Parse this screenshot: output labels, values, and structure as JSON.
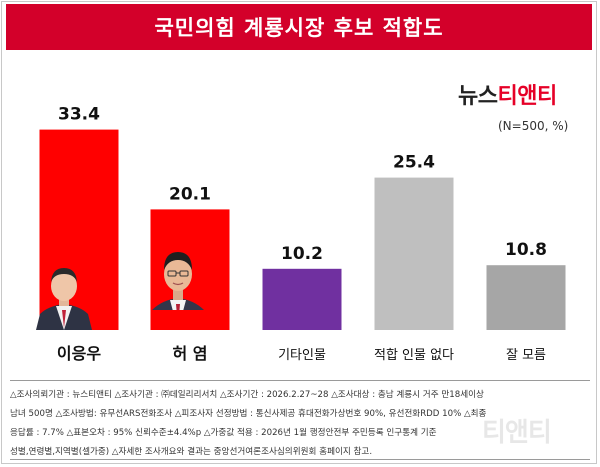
{
  "header": {
    "title": "국민의힘 계룡시장 후보 적합도"
  },
  "logo": {
    "part1": "뉴스",
    "part2": "티앤티"
  },
  "unit_label": "(N=500, %)",
  "colors": {
    "title_bg": "#d3002a",
    "red": "#ff0000",
    "purple": "#7030a0",
    "gray": "#bfbfbf",
    "dark_gray": "#a6a6a6"
  },
  "notes": {
    "line1": "△조사의뢰기관 : 뉴스티앤티 △조사기관 : ㈜데일리리서치 △조사기간 : 2026.2.27~28 △조사대상 : 충남 계룡시 거주 만18세이상",
    "line2": "남녀 500명 △조사방법: 유무선ARS전화조사 △피조사자 선정방법 : 통신사제공 휴대전화가상번호 90%, 유선전화RDD 10% △최종",
    "line3": "응답률 : 7.7% △표본오차 : 95% 신뢰수준±4.4%p △가중값 적용 : 2026년 1월 행정안전부 주민등록 인구통계 기준",
    "line4": "성별,연령별,지역별(셀가중) △자세한 조사개요와 결과는 중앙선거여론조사심의위원회 홈페이지 참고."
  },
  "chart_data": {
    "type": "bar",
    "categories": [
      "이응우",
      "허 염",
      "기타인물",
      "적합 인물 없다",
      "잘 모름"
    ],
    "values": [
      33.4,
      20.1,
      10.2,
      25.4,
      10.8
    ],
    "value_labels": [
      "33.4",
      "20.1",
      "10.2",
      "25.4",
      "10.8"
    ],
    "bar_colors": [
      "#ff0000",
      "#ff0000",
      "#7030a0",
      "#bfbfbf",
      "#a6a6a6"
    ],
    "ylim": [
      0,
      40
    ],
    "grid": false,
    "title": "국민의힘 계룡시장 후보 적합도",
    "xlabel": "",
    "ylabel": ""
  }
}
